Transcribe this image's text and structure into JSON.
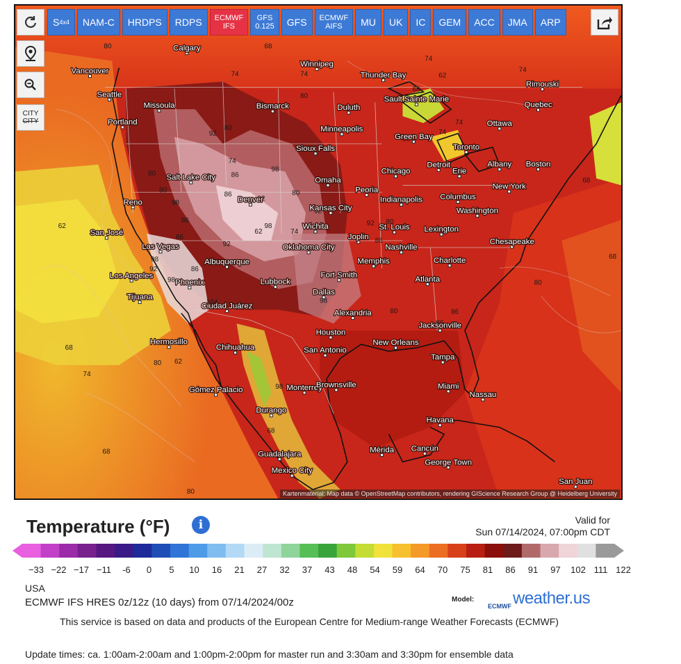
{
  "map": {
    "attribution": "Kartenmaterial: Map data © OpenStreetMap contributors, rendering GIScience Research Group @ Heidelberg University",
    "cities": [
      {
        "name": "Calgary"
      },
      {
        "name": "Winnipeg"
      },
      {
        "name": "Vancouver"
      },
      {
        "name": "Seattle"
      },
      {
        "name": "Thunder Bay"
      },
      {
        "name": "Rimouski"
      },
      {
        "name": "Missoula"
      },
      {
        "name": "Bismarck"
      },
      {
        "name": "Duluth"
      },
      {
        "name": "Sault Sainte Marie"
      },
      {
        "name": "Quebec"
      },
      {
        "name": "Portland"
      },
      {
        "name": "Minneapolis"
      },
      {
        "name": "Ottawa"
      },
      {
        "name": "Green Bay"
      },
      {
        "name": "Sioux Falls"
      },
      {
        "name": "Toronto"
      },
      {
        "name": "Detroit"
      },
      {
        "name": "Albany"
      },
      {
        "name": "Boston"
      },
      {
        "name": "Chicago"
      },
      {
        "name": "Erie"
      },
      {
        "name": "Salt Lake City"
      },
      {
        "name": "Omaha"
      },
      {
        "name": "New York"
      },
      {
        "name": "Peoria"
      },
      {
        "name": "Reno"
      },
      {
        "name": "Denver"
      },
      {
        "name": "Indianapolis"
      },
      {
        "name": "Columbus"
      },
      {
        "name": "Kansas City"
      },
      {
        "name": "Washington"
      },
      {
        "name": "San José"
      },
      {
        "name": "Wichita"
      },
      {
        "name": "St. Louis"
      },
      {
        "name": "Lexington"
      },
      {
        "name": "Joplin"
      },
      {
        "name": "Chesapeake"
      },
      {
        "name": "Las Vegas"
      },
      {
        "name": "Nashville"
      },
      {
        "name": "Oklahoma City"
      },
      {
        "name": "Albuquerque"
      },
      {
        "name": "Memphis"
      },
      {
        "name": "Charlotte"
      },
      {
        "name": "Los Angeles"
      },
      {
        "name": "Fort Smith"
      },
      {
        "name": "Phoenix"
      },
      {
        "name": "Lubbock"
      },
      {
        "name": "Atlanta"
      },
      {
        "name": "Tijuana"
      },
      {
        "name": "Dallas"
      },
      {
        "name": "Ciudad Juárez"
      },
      {
        "name": "Alexandria"
      },
      {
        "name": "Jacksonville"
      },
      {
        "name": "Houston"
      },
      {
        "name": "Hermosillo"
      },
      {
        "name": "Chihuahua"
      },
      {
        "name": "New Orleans"
      },
      {
        "name": "San Antonio"
      },
      {
        "name": "Tampa"
      },
      {
        "name": "Monterrey"
      },
      {
        "name": "Brownsville"
      },
      {
        "name": "Gómez Palacio"
      },
      {
        "name": "Miami"
      },
      {
        "name": "Nassau"
      },
      {
        "name": "Durango"
      },
      {
        "name": "Havana"
      },
      {
        "name": "Mérida"
      },
      {
        "name": "Cancún"
      },
      {
        "name": "Guadalajara"
      },
      {
        "name": "George Town"
      },
      {
        "name": "Mexico City"
      },
      {
        "name": "San Juan"
      }
    ],
    "isotherm_labels": [
      "80",
      "68",
      "74",
      "74",
      "62",
      "68",
      "74",
      "74",
      "80",
      "92",
      "80",
      "74",
      "74",
      "80",
      "68",
      "80",
      "92",
      "74",
      "86",
      "86",
      "98",
      "92",
      "80",
      "80",
      "80",
      "98",
      "86",
      "74",
      "92",
      "98",
      "62",
      "92",
      "86",
      "98",
      "92",
      "86",
      "92",
      "86",
      "98",
      "104",
      "98",
      "80",
      "86",
      "86",
      "80",
      "68",
      "68",
      "74",
      "80",
      "62",
      "68",
      "80",
      "98",
      "68",
      "62"
    ]
  },
  "toolbar": {
    "refresh_icon": "refresh-icon",
    "location_icon": "location-pin-icon",
    "zoom_out_icon": "zoom-out-icon",
    "city_toggle_top": "CITY",
    "city_toggle_bottom": "CITY",
    "share_icon": "share-icon"
  },
  "models": [
    {
      "label": "S",
      "sub": "4x4",
      "active": false
    },
    {
      "label": "NAM-C",
      "sub": "",
      "active": false
    },
    {
      "label": "HRDPS",
      "sub": "",
      "active": false
    },
    {
      "label": "RDPS",
      "sub": "",
      "active": false
    },
    {
      "label": "ECMWF",
      "sub": "IFS",
      "active": true
    },
    {
      "label": "GFS",
      "sub": "0.125",
      "active": false
    },
    {
      "label": "GFS",
      "sub": "",
      "active": false
    },
    {
      "label": "ECMWF",
      "sub": "AIFS",
      "active": false
    },
    {
      "label": "MU",
      "sub": "",
      "active": false
    },
    {
      "label": "UK",
      "sub": "",
      "active": false
    },
    {
      "label": "IC",
      "sub": "",
      "active": false
    },
    {
      "label": "GEM",
      "sub": "",
      "active": false
    },
    {
      "label": "ACC",
      "sub": "",
      "active": false
    },
    {
      "label": "JMA",
      "sub": "",
      "active": false
    },
    {
      "label": "ARP",
      "sub": "",
      "active": false
    }
  ],
  "legend": {
    "title": "Temperature (°F)",
    "info_icon": "info-icon",
    "valid_label": "Valid for",
    "valid_date": "Sun 07/14/2024, 07:00pm CDT",
    "ticks": [
      "−33",
      "−22",
      "−17",
      "−11",
      "-6",
      "0",
      "5",
      "10",
      "16",
      "21",
      "27",
      "32",
      "37",
      "43",
      "48",
      "54",
      "59",
      "64",
      "70",
      "75",
      "81",
      "86",
      "91",
      "97",
      "102",
      "111",
      "122"
    ],
    "colors": [
      "#e85fe0",
      "#c23fc8",
      "#9b2ba8",
      "#78208e",
      "#561780",
      "#3a1a86",
      "#1e2a9a",
      "#1f4db8",
      "#2f74d6",
      "#4e9be8",
      "#7fbdf0",
      "#b2d9f6",
      "#dcecf6",
      "#bfe6d2",
      "#8fd49a",
      "#57bf55",
      "#3aa43a",
      "#7ec83a",
      "#c4dc34",
      "#f0e23a",
      "#f7c02e",
      "#f49a28",
      "#ec6e22",
      "#d8401a",
      "#b81f12",
      "#8a0f0a",
      "#6c1a1a",
      "#b06a6a",
      "#d9a8ae",
      "#efd4d8",
      "#e0e0e0",
      "#9a9a9a"
    ]
  },
  "footer": {
    "region": "USA",
    "run_info": "ECMWF IFS HRES 0z/12z (10 days) from 07/14/2024/00z",
    "brand_model": "Model:",
    "brand_ecmwf": "ECMWF",
    "brand_logo": "weather.us",
    "disclaimer": "This service is based on data and products of the European Centre for Medium-range Weather Forecasts (ECMWF)",
    "update_times": "Update times: ca. 1:00am-2:00am and 1:00pm-2:00pm for master run and 3:30am and 3:30pm for ensemble data"
  }
}
